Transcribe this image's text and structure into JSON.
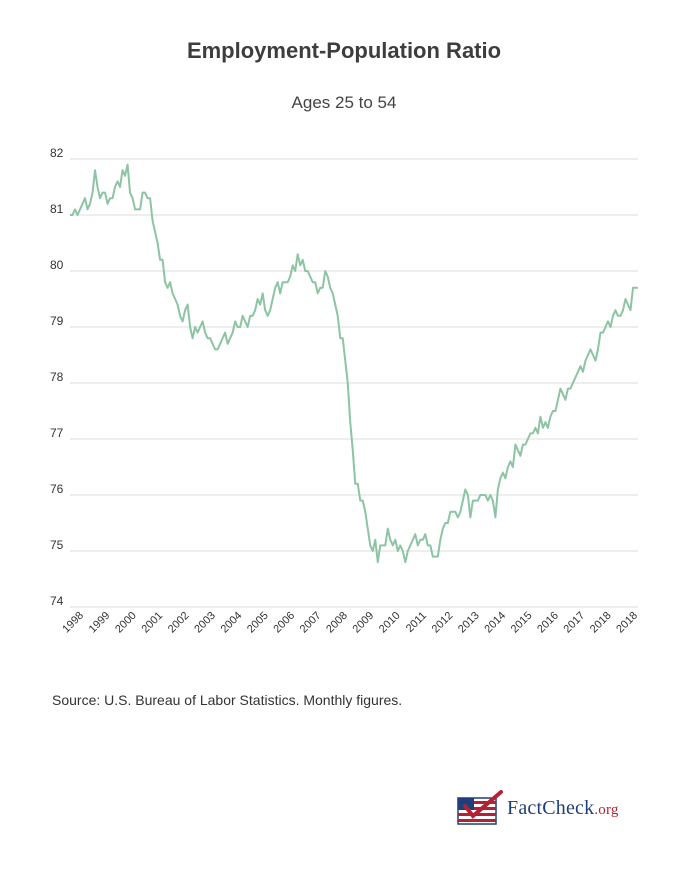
{
  "chart_data": {
    "type": "line",
    "title": "Employment-Population Ratio",
    "subtitle": "Ages 25 to 54",
    "xlabel": "",
    "ylabel": "",
    "ylim": [
      74,
      82
    ],
    "yticks": [
      "82",
      "81",
      "80",
      "79",
      "78",
      "77",
      "76",
      "75",
      "74"
    ],
    "xticks": [
      "1998",
      "1999",
      "2000",
      "2001",
      "2002",
      "2003",
      "2004",
      "2005",
      "2006",
      "2007",
      "2008",
      "2009",
      "2010",
      "2011",
      "2012",
      "2013",
      "2014",
      "2015",
      "2016",
      "2017",
      "2018",
      "2018"
    ],
    "x_start": "1998-01",
    "frequency": "monthly",
    "grid": true,
    "color": "#8cc4a4",
    "series": [
      {
        "name": "Employment-Population Ratio, 25-54",
        "values": [
          81.0,
          81.0,
          81.1,
          81.0,
          81.1,
          81.2,
          81.3,
          81.1,
          81.2,
          81.4,
          81.8,
          81.5,
          81.3,
          81.4,
          81.4,
          81.2,
          81.3,
          81.3,
          81.5,
          81.6,
          81.5,
          81.8,
          81.7,
          81.9,
          81.4,
          81.3,
          81.1,
          81.1,
          81.1,
          81.4,
          81.4,
          81.3,
          81.3,
          80.9,
          80.7,
          80.5,
          80.2,
          80.2,
          79.8,
          79.7,
          79.8,
          79.6,
          79.5,
          79.4,
          79.2,
          79.1,
          79.3,
          79.4,
          79.0,
          78.8,
          79.0,
          78.9,
          79.0,
          79.1,
          78.9,
          78.8,
          78.8,
          78.7,
          78.6,
          78.6,
          78.7,
          78.8,
          78.9,
          78.7,
          78.8,
          78.9,
          79.1,
          79.0,
          79.0,
          79.2,
          79.1,
          79.0,
          79.2,
          79.2,
          79.3,
          79.5,
          79.4,
          79.6,
          79.3,
          79.2,
          79.3,
          79.5,
          79.7,
          79.8,
          79.6,
          79.8,
          79.8,
          79.8,
          79.9,
          80.1,
          80.0,
          80.3,
          80.1,
          80.2,
          80.0,
          80.0,
          79.9,
          79.8,
          79.8,
          79.6,
          79.7,
          79.7,
          80.0,
          79.9,
          79.7,
          79.6,
          79.4,
          79.2,
          78.8,
          78.8,
          78.4,
          78.0,
          77.3,
          76.8,
          76.2,
          76.2,
          75.9,
          75.9,
          75.7,
          75.4,
          75.1,
          75.0,
          75.2,
          74.8,
          75.1,
          75.1,
          75.1,
          75.4,
          75.2,
          75.1,
          75.2,
          75.0,
          75.1,
          75.0,
          74.8,
          75.0,
          75.1,
          75.2,
          75.3,
          75.1,
          75.2,
          75.2,
          75.3,
          75.1,
          75.1,
          74.9,
          74.9,
          74.9,
          75.2,
          75.4,
          75.5,
          75.5,
          75.7,
          75.7,
          75.7,
          75.6,
          75.7,
          75.9,
          76.1,
          76.0,
          75.6,
          75.9,
          75.9,
          75.9,
          76.0,
          76.0,
          76.0,
          75.9,
          76.0,
          75.9,
          75.6,
          76.1,
          76.3,
          76.4,
          76.3,
          76.5,
          76.6,
          76.5,
          76.9,
          76.8,
          76.7,
          76.9,
          76.9,
          77.0,
          77.1,
          77.1,
          77.2,
          77.1,
          77.4,
          77.2,
          77.3,
          77.2,
          77.4,
          77.5,
          77.5,
          77.7,
          77.9,
          77.8,
          77.7,
          77.9,
          77.9,
          78.0,
          78.1,
          78.2,
          78.3,
          78.2,
          78.4,
          78.5,
          78.6,
          78.5,
          78.4,
          78.6,
          78.9,
          78.9,
          79.0,
          79.1,
          79.0,
          79.2,
          79.3,
          79.2,
          79.2,
          79.3,
          79.5,
          79.4,
          79.3,
          79.7,
          79.7,
          79.7
        ]
      }
    ]
  },
  "footer": {
    "source": "Source: U.S. Bureau of Labor Statistics. Monthly figures."
  },
  "logo": {
    "brand_main": "FactCheck",
    "brand_suffix": ".org",
    "colors": {
      "blue": "#1f3f7a",
      "red": "#b22234"
    }
  }
}
